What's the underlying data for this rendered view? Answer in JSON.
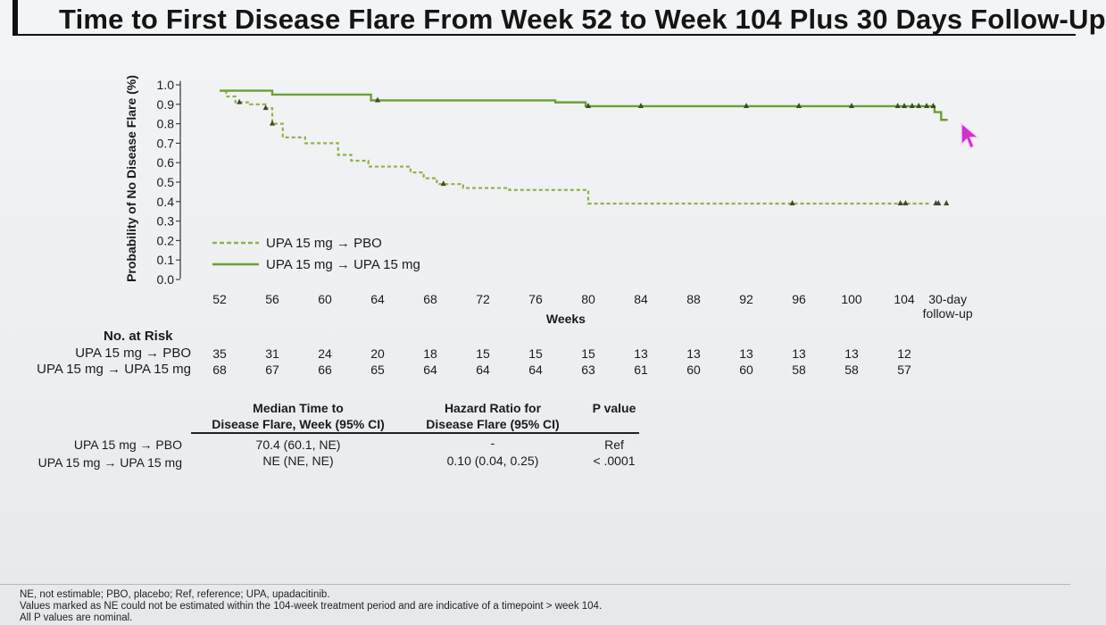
{
  "title": "Time to First Disease Flare From Week 52 to Week 104 Plus 30 Days Follow-Up",
  "chart_data": {
    "type": "line",
    "title": "Time to First Disease Flare From Week 52 to Week 104 Plus 30 Days Follow-Up",
    "ylabel": "Probability of No Disease Flare (%)",
    "xlabel": "Weeks",
    "ylim": [
      0.0,
      1.0
    ],
    "y_ticks": [
      "0.0",
      "0.1",
      "0.2",
      "0.3",
      "0.4",
      "0.5",
      "0.6",
      "0.7",
      "0.8",
      "0.9",
      "1.0"
    ],
    "x_ticks": [
      "52",
      "56",
      "60",
      "64",
      "68",
      "72",
      "76",
      "80",
      "84",
      "88",
      "92",
      "96",
      "100",
      "104"
    ],
    "x_tick_last": [
      "30-day",
      "follow-up"
    ],
    "xlim": [
      52,
      108
    ],
    "legend_position": "lower-left",
    "series": [
      {
        "name": "UPA 15 mg → PBO",
        "style": "dashed",
        "color": "#8db34a",
        "x": [
          52,
          52.5,
          53.2,
          54.3,
          55.5,
          56,
          56.8,
          58.5,
          61,
          62,
          63.3,
          66.5,
          67.5,
          68.5,
          70.5,
          74,
          78.5,
          80,
          103.5,
          105,
          106
        ],
        "y": [
          0.97,
          0.94,
          0.91,
          0.9,
          0.88,
          0.8,
          0.73,
          0.7,
          0.64,
          0.61,
          0.58,
          0.55,
          0.52,
          0.49,
          0.47,
          0.46,
          0.46,
          0.39,
          0.39,
          0.39,
          0.39
        ],
        "censor_x": [
          53.5,
          55.5,
          56,
          69,
          95.5,
          103.7,
          104.1,
          106.4,
          106.6,
          107.2
        ]
      },
      {
        "name": "UPA 15 mg → UPA 15 mg",
        "style": "solid",
        "color": "#6aa032",
        "x": [
          52,
          54.8,
          56,
          63.5,
          77.5,
          79.8,
          103.5,
          106.3,
          106.8,
          107.3
        ],
        "y": [
          0.97,
          0.97,
          0.95,
          0.92,
          0.91,
          0.89,
          0.89,
          0.86,
          0.82,
          0.82
        ],
        "censor_x": [
          64,
          80,
          84,
          92,
          96,
          100,
          103.5,
          104,
          104.6,
          105.1,
          105.7,
          106.2
        ]
      }
    ]
  },
  "risk_table": {
    "header": "No. at Risk",
    "rows": [
      {
        "label": "UPA 15 mg → PBO",
        "values": [
          "35",
          "31",
          "24",
          "20",
          "18",
          "15",
          "15",
          "15",
          "13",
          "13",
          "13",
          "13",
          "13",
          "12"
        ]
      },
      {
        "label": "UPA 15 mg → UPA 15 mg",
        "values": [
          "68",
          "67",
          "66",
          "65",
          "64",
          "64",
          "64",
          "63",
          "61",
          "60",
          "60",
          "58",
          "58",
          "57"
        ]
      }
    ]
  },
  "summary_table": {
    "headers": [
      [
        "Median Time to",
        "Disease Flare, Week (95% CI)"
      ],
      [
        "Hazard Ratio for",
        "Disease Flare (95% CI)"
      ],
      [
        "",
        "P value"
      ]
    ],
    "rows": [
      {
        "label": "UPA 15 mg → PBO",
        "median": "70.4 (60.1, NE)",
        "hr": "-",
        "p": "Ref"
      },
      {
        "label": "UPA 15 mg → UPA 15 mg",
        "median": "NE (NE, NE)",
        "hr": "0.10 (0.04, 0.25)",
        "p": "< .0001"
      }
    ]
  },
  "footnotes": [
    "NE, not estimable; PBO, placebo; Ref, reference; UPA, upadacitinib.",
    "Values marked as NE could not be estimated within the 104-week treatment period and are indicative of a timepoint > week 104.",
    "All P values are nominal."
  ],
  "colors": {
    "pbo": "#8db34a",
    "upa": "#6aa032",
    "cursor": "#cc33cc"
  }
}
